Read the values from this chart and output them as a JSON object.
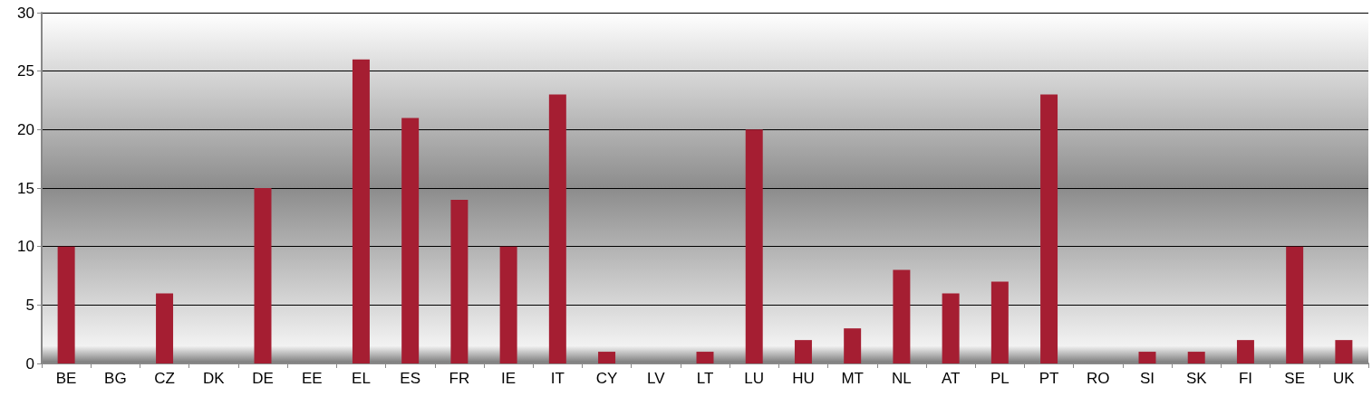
{
  "chart_data": {
    "type": "bar",
    "categories": [
      "BE",
      "BG",
      "CZ",
      "DK",
      "DE",
      "EE",
      "EL",
      "ES",
      "FR",
      "IE",
      "IT",
      "CY",
      "LV",
      "LT",
      "LU",
      "HU",
      "MT",
      "NL",
      "AT",
      "PL",
      "PT",
      "RO",
      "SI",
      "SK",
      "FI",
      "SE",
      "UK"
    ],
    "values": [
      10,
      0,
      6,
      0,
      15,
      0,
      26,
      21,
      14,
      10,
      23,
      1,
      0,
      1,
      20,
      2,
      3,
      8,
      6,
      7,
      23,
      0,
      1,
      1,
      2,
      10,
      2
    ],
    "color": "#a51e32",
    "ylim": [
      0,
      30
    ],
    "yticks": [
      0,
      5,
      10,
      15,
      20,
      25,
      30
    ],
    "grid": "y"
  }
}
